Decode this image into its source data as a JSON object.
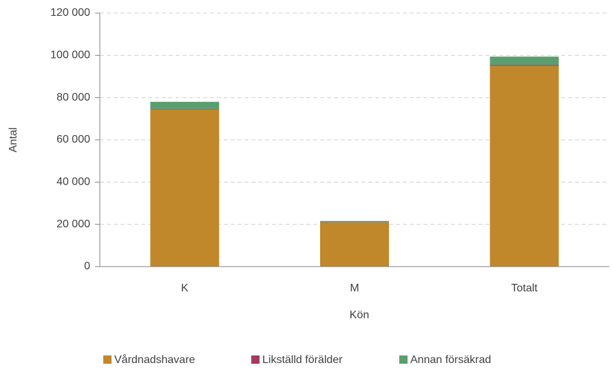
{
  "chart_data": {
    "type": "stacked_bar",
    "x_label": "Kön",
    "y_label": "Antal",
    "categories": [
      "K",
      "M",
      "Totalt"
    ],
    "series": [
      {
        "name": "Vårdnadshavare",
        "color": "#c0882a",
        "values": [
          74500,
          20900,
          95000
        ]
      },
      {
        "name": "Likställd förälder",
        "color": "#a5395f",
        "values": [
          200,
          100,
          500
        ]
      },
      {
        "name": "Annan försäkrad",
        "color": "#5a9e6f",
        "values": [
          3300,
          600,
          3900
        ]
      }
    ],
    "ylim": [
      0,
      120000
    ],
    "yticks": [
      0,
      {
        "value": 20000,
        "label": "20 000"
      },
      {
        "value": 40000,
        "label": "40 000"
      },
      {
        "value": 60000,
        "label": "60 000"
      },
      {
        "value": 80000,
        "label": "80 000"
      },
      {
        "value": 100000,
        "label": "100 000"
      },
      {
        "value": 120000,
        "label": "120 000"
      }
    ],
    "grid": true,
    "legend": "bottom"
  }
}
